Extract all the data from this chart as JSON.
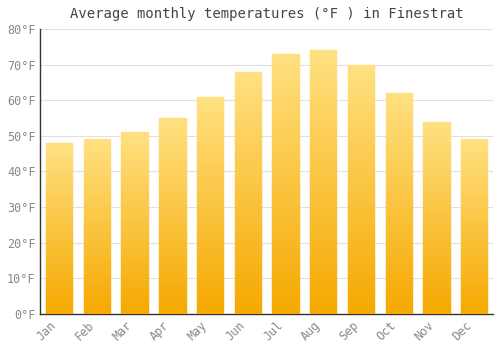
{
  "title": "Average monthly temperatures (°F ) in Finestrat",
  "months": [
    "Jan",
    "Feb",
    "Mar",
    "Apr",
    "May",
    "Jun",
    "Jul",
    "Aug",
    "Sep",
    "Oct",
    "Nov",
    "Dec"
  ],
  "values": [
    48,
    49,
    51,
    55,
    61,
    68,
    73,
    74,
    70,
    62,
    54,
    49
  ],
  "bar_color_bottom": "#F5A800",
  "bar_color_top": "#FFE080",
  "ylim": [
    0,
    80
  ],
  "ytick_step": 10,
  "background_color": "#ffffff",
  "grid_color": "#e0e0e0",
  "title_fontsize": 10,
  "tick_fontsize": 8.5,
  "bar_width": 0.7,
  "n_gradient_strips": 100
}
